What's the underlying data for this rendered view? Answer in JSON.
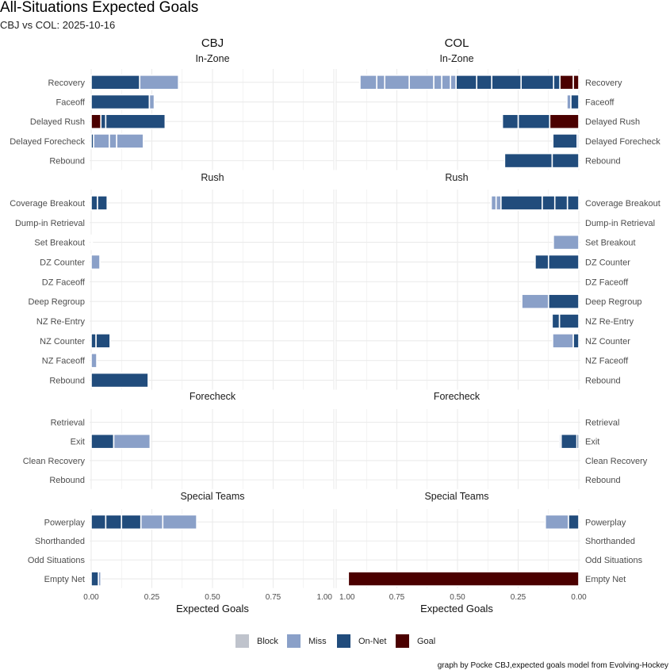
{
  "chart_data": {
    "type": "bar",
    "orientation": "horizontal-stacked",
    "title": "All-Situations Expected Goals",
    "subtitle": "CBJ vs COL: 2025-10-16",
    "xlabel": "Expected Goals",
    "xlim": [
      0,
      1.0
    ],
    "xticks": [
      "0.00",
      "0.25",
      "0.50",
      "0.75",
      "1.00"
    ],
    "xticks_reversed": [
      "1.00",
      "0.75",
      "0.50",
      "0.25",
      "0.00"
    ],
    "caption": "graph by Pocke CBJ,expected goals model from Evolving-Hockey",
    "legend": {
      "position": "bottom",
      "items": [
        {
          "key": "block",
          "label": "Block",
          "color": "#bfc3cc"
        },
        {
          "key": "miss",
          "label": "Miss",
          "color": "#8aa0c8"
        },
        {
          "key": "on-net",
          "label": "On-Net",
          "color": "#214c7c"
        },
        {
          "key": "goal",
          "label": "Goal",
          "color": "#4b0000"
        }
      ]
    },
    "sections": [
      {
        "name": "In-Zone",
        "rows": [
          "Recovery",
          "Faceoff",
          "Delayed Rush",
          "Delayed Forecheck",
          "Rebound"
        ]
      },
      {
        "name": "Rush",
        "rows": [
          "Coverage Breakout",
          "Dump-in Retrieval",
          "Set Breakout",
          "DZ Counter",
          "DZ Faceoff",
          "Deep Regroup",
          "NZ Re-Entry",
          "NZ Counter",
          "NZ Faceoff",
          "Rebound"
        ]
      },
      {
        "name": "Forecheck",
        "rows": [
          "Retrieval",
          "Exit",
          "Clean Recovery",
          "Rebound"
        ]
      },
      {
        "name": "Special Teams",
        "rows": [
          "Powerplay",
          "Shorthanded",
          "Odd Situations",
          "Empty Net"
        ]
      }
    ],
    "teams": [
      {
        "name": "CBJ",
        "shots": {
          "In-Zone": {
            "Recovery": [
              [
                "on-net",
                0.2
              ],
              [
                "miss",
                0.16
              ]
            ],
            "Faceoff": [
              [
                "on-net",
                0.24
              ],
              [
                "miss",
                0.02
              ]
            ],
            "Delayed Rush": [
              [
                "goal",
                0.04
              ],
              [
                "on-net",
                0.02
              ],
              [
                "on-net",
                0.245
              ]
            ],
            "Delayed Forecheck": [
              [
                "on-net",
                0.01
              ],
              [
                "miss",
                0.065
              ],
              [
                "miss",
                0.03
              ],
              [
                "miss",
                0.11
              ]
            ],
            "Rebound": []
          },
          "Rush": {
            "Coverage Breakout": [
              [
                "on-net",
                0.026
              ],
              [
                "on-net",
                0.04
              ]
            ],
            "Dump-in Retrieval": [],
            "Set Breakout": [
              [
                "miss",
                0.005
              ]
            ],
            "DZ Counter": [
              [
                "miss",
                0.036
              ]
            ],
            "DZ Faceoff": [],
            "Deep Regroup": [],
            "NZ Re-Entry": [],
            "NZ Counter": [
              [
                "on-net",
                0.02
              ],
              [
                "on-net",
                0.058
              ]
            ],
            "NZ Faceoff": [
              [
                "miss",
                0.023
              ]
            ],
            "Rebound": [
              [
                "on-net",
                0.235
              ]
            ]
          },
          "Forecheck": {
            "Retrieval": [],
            "Exit": [
              [
                "on-net",
                0.093
              ],
              [
                "miss",
                0.15
              ]
            ],
            "Clean Recovery": [],
            "Rebound": []
          },
          "Special Teams": {
            "Powerplay": [
              [
                "on-net",
                0.06
              ],
              [
                "on-net",
                0.065
              ],
              [
                "on-net",
                0.08
              ],
              [
                "miss",
                0.09
              ],
              [
                "miss",
                0.14
              ]
            ],
            "Shorthanded": [],
            "Odd Situations": [],
            "Empty Net": [
              [
                "on-net",
                0.03
              ],
              [
                "miss",
                0.01
              ]
            ]
          }
        }
      },
      {
        "name": "COL",
        "shots": {
          "In-Zone": {
            "Recovery": [
              [
                "goal",
                0.023
              ],
              [
                "goal",
                0.055
              ],
              [
                "on-net",
                0.026
              ],
              [
                "on-net",
                0.134
              ],
              [
                "on-net",
                0.121
              ],
              [
                "on-net",
                0.062
              ],
              [
                "on-net",
                0.085
              ],
              [
                "miss",
                0.023
              ],
              [
                "miss",
                0.036
              ],
              [
                "miss",
                0.033
              ],
              [
                "miss",
                0.101
              ],
              [
                "miss",
                0.101
              ],
              [
                "miss",
                0.033
              ],
              [
                "miss",
                0.069
              ]
            ],
            "Faceoff": [
              [
                "on-net",
                0.033
              ],
              [
                "miss",
                0.016
              ]
            ],
            "Delayed Rush": [
              [
                "goal",
                0.12
              ],
              [
                "on-net",
                0.13
              ],
              [
                "on-net",
                0.065
              ]
            ],
            "Delayed Forecheck": [
              [
                "miss",
                0.007
              ],
              [
                "on-net",
                0.1
              ]
            ],
            "Rebound": [
              [
                "on-net",
                0.11
              ],
              [
                "on-net",
                0.196
              ]
            ]
          },
          "Rush": {
            "Coverage Breakout": [
              [
                "on-net",
                0.047
              ],
              [
                "on-net",
                0.052
              ],
              [
                "on-net",
                0.052
              ],
              [
                "on-net",
                0.17
              ],
              [
                "miss",
                0.02
              ],
              [
                "miss",
                0.02
              ]
            ],
            "Dump-in Retrieval": [],
            "Set Breakout": [
              [
                "miss",
                0.105
              ]
            ],
            "DZ Counter": [
              [
                "on-net",
                0.125
              ],
              [
                "on-net",
                0.055
              ]
            ],
            "DZ Faceoff": [],
            "Deep Regroup": [
              [
                "on-net",
                0.125
              ],
              [
                "miss",
                0.11
              ]
            ],
            "NZ Re-Entry": [
              [
                "on-net",
                0.08
              ],
              [
                "on-net",
                0.03
              ]
            ],
            "NZ Counter": [
              [
                "on-net",
                0.023
              ],
              [
                "miss",
                0.085
              ]
            ],
            "NZ Faceoff": [],
            "Rebound": []
          },
          "Forecheck": {
            "Retrieval": [],
            "Exit": [
              [
                "on-net",
                0.008
              ],
              [
                "on-net",
                0.065
              ],
              [
                "miss",
                0.006
              ]
            ],
            "Clean Recovery": [],
            "Rebound": []
          },
          "Special Teams": {
            "Powerplay": [
              [
                "on-net",
                0.043
              ],
              [
                "miss",
                0.095
              ]
            ],
            "Shorthanded": [],
            "Odd Situations": [],
            "Empty Net": [
              [
                "goal",
                0.95
              ]
            ]
          }
        }
      }
    ]
  }
}
